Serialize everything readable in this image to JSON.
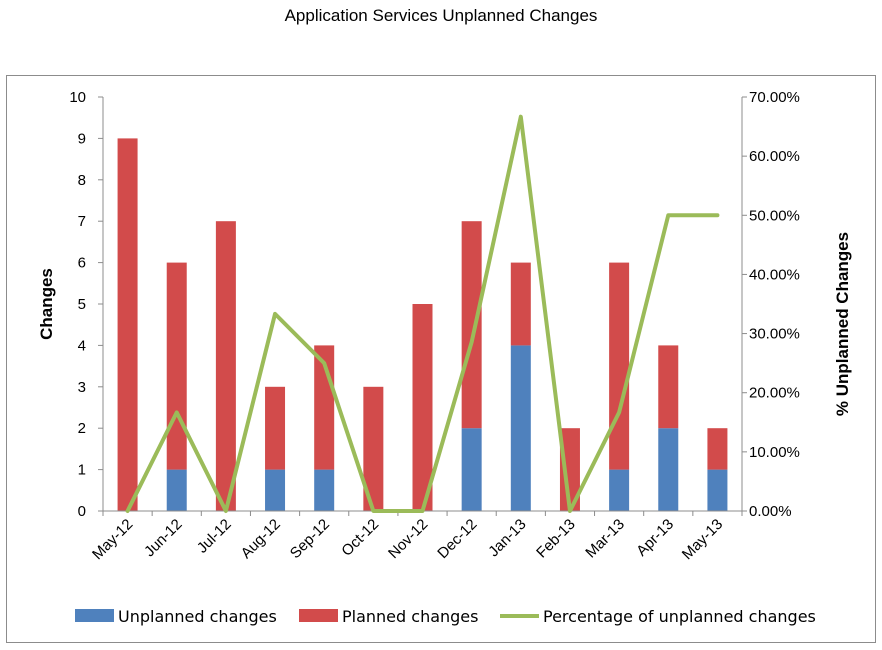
{
  "chart_data": {
    "type": "bar",
    "title": "Application Services Unplanned Changes",
    "ylabel": "Changes",
    "y2label": "% Unplanned Changes",
    "ylim": [
      0,
      10
    ],
    "y2lim": [
      0,
      0.7
    ],
    "yticks": [
      "0",
      "1",
      "2",
      "3",
      "4",
      "5",
      "6",
      "7",
      "8",
      "9",
      "10"
    ],
    "y2ticks": [
      "0.00%",
      "10.00%",
      "20.00%",
      "30.00%",
      "40.00%",
      "50.00%",
      "60.00%",
      "70.00%"
    ],
    "stacked": true,
    "grid": false,
    "legend_position": "bottom",
    "categories": [
      "May-12",
      "Jun-12",
      "Jul-12",
      "Aug-12",
      "Sep-12",
      "Oct-12",
      "Nov-12",
      "Dec-12",
      "Jan-13",
      "Feb-13",
      "Mar-13",
      "Apr-13",
      "May-13"
    ],
    "series": [
      {
        "name": "Unplanned changes",
        "type": "bar",
        "axis": "left",
        "color": "#4f81bd",
        "values": [
          0,
          1,
          0,
          1,
          1,
          0,
          0,
          2,
          4,
          0,
          1,
          2,
          1
        ]
      },
      {
        "name": "Planned changes",
        "type": "bar",
        "axis": "left",
        "color": "#d24b4b",
        "values": [
          9,
          5,
          7,
          2,
          3,
          3,
          5,
          5,
          2,
          2,
          5,
          2,
          1
        ]
      },
      {
        "name": "Percentage of unplanned changes",
        "type": "line",
        "axis": "right",
        "color": "#9bbb59",
        "values": [
          0,
          0.1667,
          0,
          0.3333,
          0.25,
          0,
          0,
          0.2857,
          0.6667,
          0,
          0.1667,
          0.5,
          0.5
        ]
      }
    ]
  }
}
